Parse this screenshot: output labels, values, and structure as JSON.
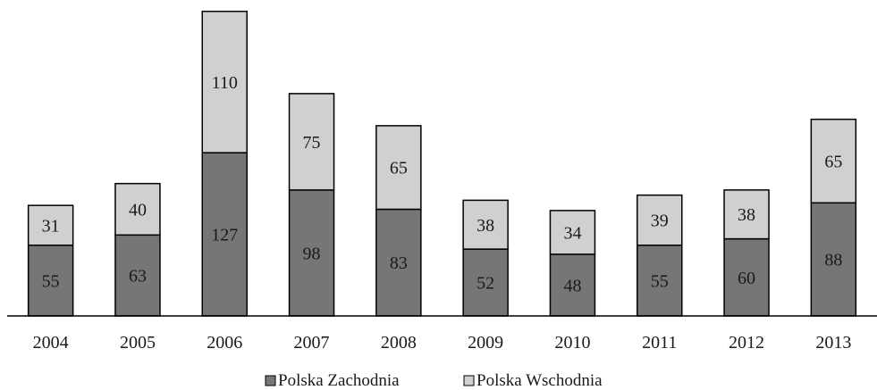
{
  "chart_data": {
    "type": "bar",
    "stacked": true,
    "categories": [
      "2004",
      "2005",
      "2006",
      "2007",
      "2008",
      "2009",
      "2010",
      "2011",
      "2012",
      "2013"
    ],
    "series": [
      {
        "name": "Polska Zachodnia",
        "values": [
          55,
          63,
          127,
          98,
          83,
          52,
          48,
          55,
          60,
          88
        ],
        "color": "#767676"
      },
      {
        "name": "Polska Wschodnia",
        "values": [
          31,
          40,
          110,
          75,
          65,
          38,
          34,
          39,
          38,
          65
        ],
        "color": "#d0d0d0"
      }
    ],
    "title": "",
    "xlabel": "",
    "ylabel": "",
    "ylim": [
      0,
      237
    ],
    "grid": false,
    "legend": "bottom-center",
    "data_labels": true
  }
}
